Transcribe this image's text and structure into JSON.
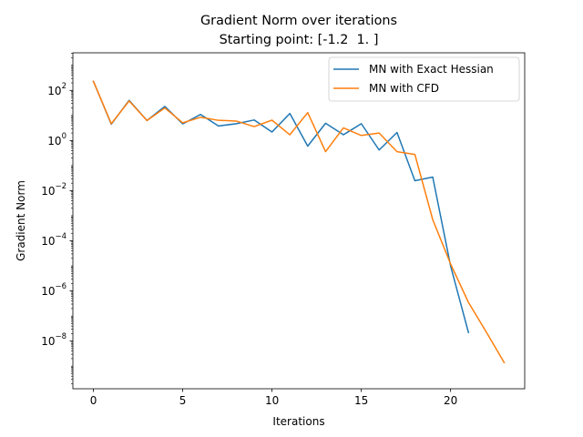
{
  "chart_data": {
    "type": "line",
    "title": "Gradient Norm over iterations",
    "subtitle": "Starting point: [-1.2  1. ]",
    "xlabel": "Iterations",
    "ylabel": "Gradient Norm",
    "xlim": [
      -1.15,
      24.15
    ],
    "ylim_log10": [
      -9.9,
      3.5
    ],
    "yscale": "log",
    "xticks": [
      0,
      5,
      10,
      15,
      20
    ],
    "yticks": [
      {
        "mantissa": "10",
        "exp": "2",
        "value": 2
      },
      {
        "mantissa": "10",
        "exp": "0",
        "value": 0
      },
      {
        "mantissa": "10",
        "exp": "−2",
        "value": -2
      },
      {
        "mantissa": "10",
        "exp": "−4",
        "value": -4
      },
      {
        "mantissa": "10",
        "exp": "−6",
        "value": -6
      },
      {
        "mantissa": "10",
        "exp": "−8",
        "value": -8
      }
    ],
    "legend_position": "top-right",
    "grid": false,
    "series": [
      {
        "name": "MN with Exact Hessian",
        "color": "#1f77b4",
        "x": [
          0,
          1,
          2,
          3,
          4,
          5,
          6,
          7,
          8,
          9,
          10,
          11,
          12,
          13,
          14,
          15,
          16,
          17,
          18,
          19,
          20,
          21
        ],
        "y": [
          230,
          4.5,
          40,
          6.3,
          23,
          4.6,
          11,
          3.8,
          4.7,
          6.6,
          2.2,
          12,
          0.6,
          4.9,
          1.7,
          4.7,
          0.42,
          2.1,
          0.025,
          0.035,
          1e-05,
          2.2e-08
        ]
      },
      {
        "name": "MN with CFD",
        "color": "#ff7f0e",
        "x": [
          0,
          1,
          2,
          3,
          4,
          5,
          6,
          7,
          8,
          9,
          10,
          11,
          12,
          13,
          14,
          15,
          16,
          17,
          18,
          19,
          20,
          21,
          22,
          23
        ],
        "y": [
          230,
          4.7,
          38,
          6.3,
          20,
          5.1,
          8.5,
          6.4,
          6.0,
          3.6,
          6.5,
          1.7,
          13,
          0.36,
          3.2,
          1.6,
          2.0,
          0.36,
          0.28,
          0.0007,
          1.2e-05,
          3.5e-07,
          2.3e-08,
          1.4e-09
        ]
      }
    ]
  }
}
